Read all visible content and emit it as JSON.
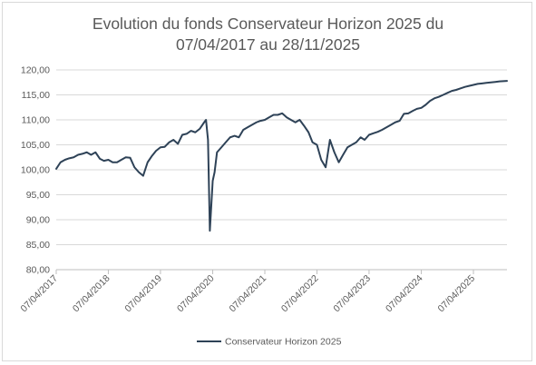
{
  "chart_data": {
    "type": "line",
    "title_line1": "Evolution du fonds Conservateur Horizon 2025 du",
    "title_line2": "07/04/2017 au 28/11/2025",
    "xlabel": "",
    "ylabel": "",
    "ylim": [
      80,
      120
    ],
    "y_ticks": [
      "80,00",
      "85,00",
      "90,00",
      "95,00",
      "100,00",
      "105,00",
      "110,00",
      "115,00",
      "120,00"
    ],
    "x_ticks": [
      "07/04/2017",
      "07/04/2018",
      "07/04/2019",
      "07/04/2020",
      "07/04/2021",
      "07/04/2022",
      "07/04/2023",
      "07/04/2024",
      "07/04/2025"
    ],
    "x_range": [
      "2017-04-07",
      "2025-11-28"
    ],
    "grid": "horizontal",
    "legend_position": "bottom",
    "color": "#2e4257",
    "series": [
      {
        "name": "Conservateur Horizon 2025",
        "x": [
          "2017-04-07",
          "2017-05-07",
          "2017-06-07",
          "2017-07-07",
          "2017-08-07",
          "2017-09-07",
          "2017-10-07",
          "2017-11-07",
          "2017-12-07",
          "2018-01-07",
          "2018-02-07",
          "2018-03-07",
          "2018-04-07",
          "2018-05-07",
          "2018-06-07",
          "2018-07-07",
          "2018-08-07",
          "2018-09-07",
          "2018-10-07",
          "2018-11-07",
          "2018-12-07",
          "2019-01-07",
          "2019-02-07",
          "2019-03-07",
          "2019-04-07",
          "2019-05-07",
          "2019-06-07",
          "2019-07-07",
          "2019-08-07",
          "2019-09-07",
          "2019-10-07",
          "2019-11-07",
          "2019-12-07",
          "2020-01-07",
          "2020-02-07",
          "2020-02-20",
          "2020-03-05",
          "2020-03-18",
          "2020-04-07",
          "2020-04-20",
          "2020-05-07",
          "2020-06-07",
          "2020-07-07",
          "2020-08-07",
          "2020-09-07",
          "2020-10-07",
          "2020-11-07",
          "2020-12-07",
          "2021-01-07",
          "2021-02-07",
          "2021-03-07",
          "2021-04-07",
          "2021-05-07",
          "2021-06-07",
          "2021-07-07",
          "2021-08-07",
          "2021-09-07",
          "2021-10-07",
          "2021-11-07",
          "2021-12-07",
          "2022-01-07",
          "2022-02-07",
          "2022-03-07",
          "2022-04-07",
          "2022-05-07",
          "2022-06-07",
          "2022-07-07",
          "2022-08-07",
          "2022-09-07",
          "2022-10-07",
          "2022-11-07",
          "2022-12-07",
          "2023-01-07",
          "2023-02-07",
          "2023-03-07",
          "2023-04-07",
          "2023-05-07",
          "2023-06-07",
          "2023-07-07",
          "2023-08-07",
          "2023-09-07",
          "2023-10-07",
          "2023-11-07",
          "2023-12-07",
          "2024-01-07",
          "2024-02-07",
          "2024-03-07",
          "2024-04-07",
          "2024-05-07",
          "2024-06-07",
          "2024-07-07",
          "2024-08-07",
          "2024-09-07",
          "2024-10-07",
          "2024-11-07",
          "2024-12-07",
          "2025-01-07",
          "2025-02-07",
          "2025-03-07",
          "2025-04-07",
          "2025-05-07",
          "2025-06-07",
          "2025-07-07",
          "2025-08-07",
          "2025-09-07",
          "2025-10-07",
          "2025-11-28"
        ],
        "y": [
          100.2,
          101.5,
          102.0,
          102.3,
          102.5,
          103.0,
          103.2,
          103.5,
          103.0,
          103.5,
          102.2,
          101.8,
          102.0,
          101.5,
          101.5,
          102.0,
          102.5,
          102.4,
          100.5,
          99.5,
          98.8,
          101.5,
          102.8,
          103.8,
          104.5,
          104.6,
          105.5,
          106.0,
          105.2,
          107.0,
          107.2,
          107.8,
          107.5,
          108.2,
          109.5,
          110.0,
          106.0,
          87.8,
          97.8,
          99.5,
          103.5,
          104.5,
          105.5,
          106.5,
          106.8,
          106.5,
          108.0,
          108.5,
          109.0,
          109.5,
          109.8,
          110.0,
          110.5,
          111.0,
          111.0,
          111.3,
          110.5,
          110.0,
          109.5,
          110.0,
          108.8,
          107.5,
          105.5,
          105.0,
          102.0,
          100.5,
          106.0,
          103.5,
          101.5,
          103.0,
          104.5,
          105.0,
          105.5,
          106.5,
          106.0,
          107.0,
          107.3,
          107.6,
          108.0,
          108.5,
          109.0,
          109.5,
          109.8,
          111.2,
          111.3,
          111.8,
          112.2,
          112.4,
          113.0,
          113.8,
          114.3,
          114.6,
          115.0,
          115.4,
          115.8,
          116.0,
          116.3,
          116.6,
          116.8,
          117.0,
          117.2,
          117.3,
          117.4,
          117.5,
          117.6,
          117.7,
          117.8
        ]
      }
    ]
  }
}
